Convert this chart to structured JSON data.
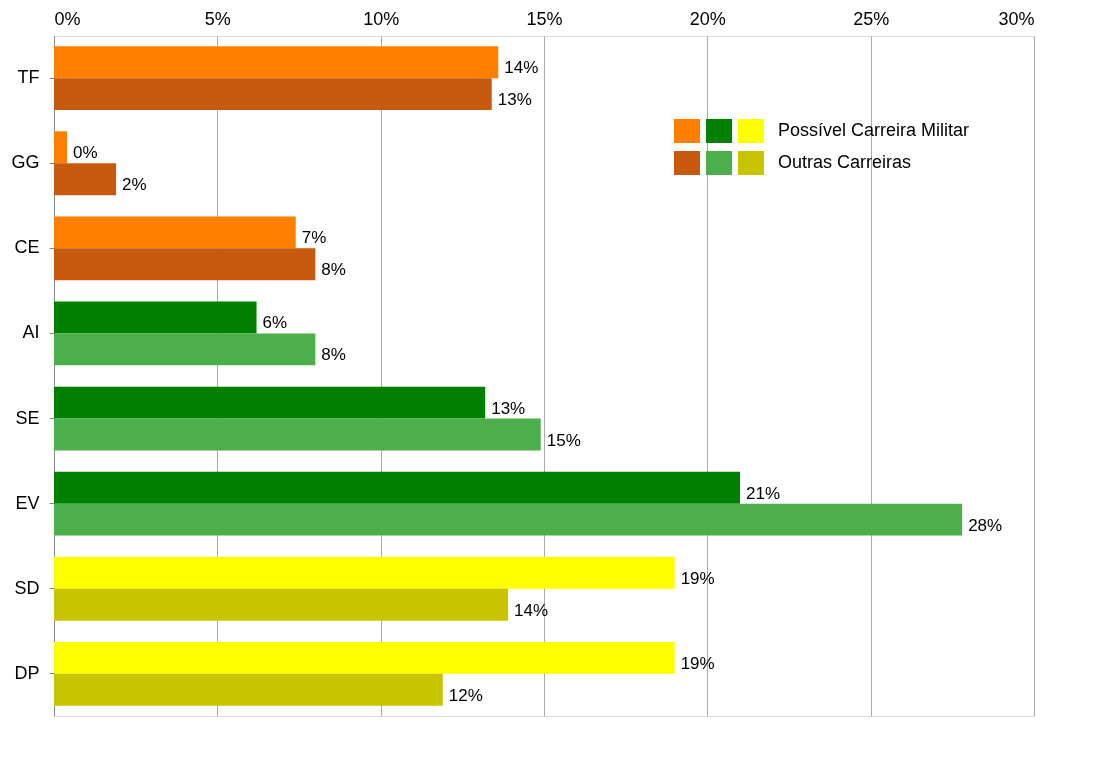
{
  "chart_data": {
    "type": "bar",
    "orientation": "horizontal",
    "categories": [
      "TF",
      "GG",
      "CE",
      "AI",
      "SE",
      "EV",
      "SD",
      "DP"
    ],
    "series": [
      {
        "name": "Possível Carreira Militar",
        "colors": [
          "#ff7f00",
          "#ff7f00",
          "#ff7f00",
          "#008000",
          "#008000",
          "#008000",
          "#ffff00",
          "#ffff00"
        ],
        "values": [
          13.6,
          0.4,
          7.4,
          6.2,
          13.2,
          21.0,
          19.0,
          19.0
        ],
        "value_labels": [
          "14%",
          "0%",
          "7%",
          "6%",
          "13%",
          "21%",
          "19%",
          "19%"
        ]
      },
      {
        "name": "Outras Carreiras",
        "colors": [
          "#c85a10",
          "#c85a10",
          "#c85a10",
          "#4caf4c",
          "#4caf4c",
          "#4caf4c",
          "#c8c400",
          "#c8c400"
        ],
        "values": [
          13.4,
          1.9,
          8.0,
          8.0,
          14.9,
          27.8,
          13.9,
          11.9
        ],
        "value_labels": [
          "13%",
          "2%",
          "8%",
          "8%",
          "15%",
          "28%",
          "14%",
          "12%"
        ]
      }
    ],
    "xlim": [
      0,
      30
    ],
    "xticks": [
      {
        "value": 0,
        "label": "0%"
      },
      {
        "value": 5,
        "label": "5%"
      },
      {
        "value": 10,
        "label": "10%"
      },
      {
        "value": 15,
        "label": "15%"
      },
      {
        "value": 20,
        "label": "20%"
      },
      {
        "value": 25,
        "label": "25%"
      },
      {
        "value": 30,
        "label": "30%"
      }
    ],
    "grid": "x",
    "legend": "top right"
  }
}
